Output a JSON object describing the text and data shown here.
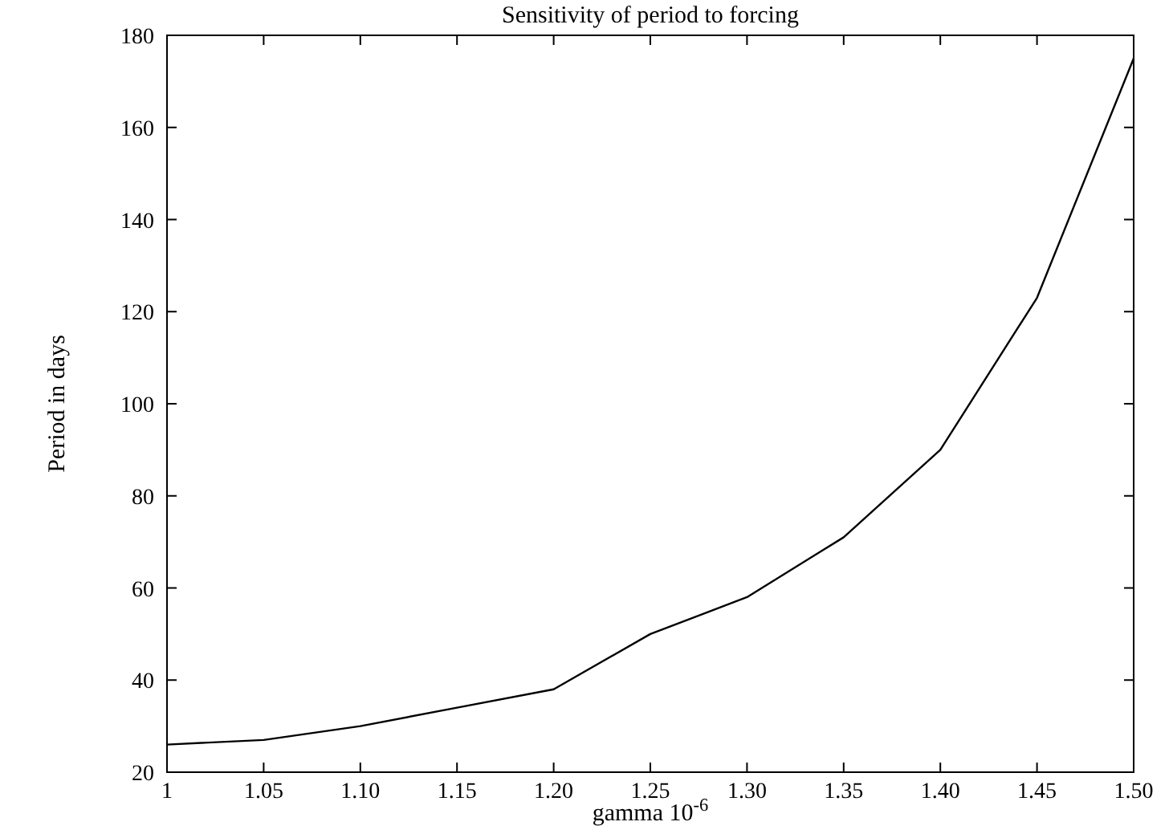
{
  "chart_data": {
    "type": "line",
    "title": "Sensitivity of period to forcing",
    "xlabel": "gamma  10$^{-6}$",
    "ylabel": "Period in days",
    "x": [
      1,
      1.05,
      1.1,
      1.15,
      1.2,
      1.25,
      1.3,
      1.35,
      1.4,
      1.45,
      1.5
    ],
    "series": [
      {
        "color": "#000000",
        "values": [
          26,
          27,
          30,
          34,
          38,
          50,
          58,
          71,
          90,
          123,
          175
        ]
      }
    ],
    "xlim": [
      1,
      1.5
    ],
    "xticks": [
      1,
      1.05,
      {
        "value": 1.1,
        "label": "1.10"
      },
      1.15,
      {
        "value": 1.2,
        "label": "1.20"
      },
      1.25,
      {
        "value": 1.3,
        "label": "1.30"
      },
      1.35,
      {
        "value": 1.4,
        "label": "1.40"
      },
      1.45,
      {
        "value": 1.5,
        "label": "1.50"
      }
    ],
    "ylim": [
      20,
      180
    ],
    "yticks": [
      20,
      40,
      60,
      80,
      100,
      120,
      140,
      160,
      180
    ],
    "grid": false,
    "marker": "none",
    "line_style": "solid"
  }
}
